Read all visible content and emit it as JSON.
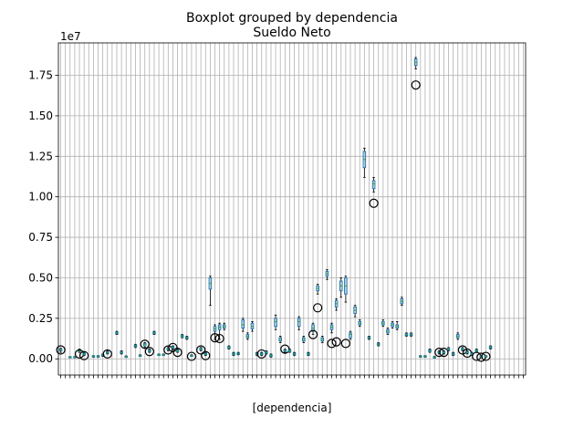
{
  "chart_data": {
    "type": "box",
    "suptitle": "Boxplot grouped by dependencia",
    "title": "Sueldo Neto",
    "xlabel": "[dependencia]",
    "ylabel": "",
    "y_offset_label": "1e7",
    "ylim": [
      -1000000,
      19500000
    ],
    "yticks": [
      0,
      2500000,
      5000000,
      7500000,
      10000000,
      12500000,
      15000000,
      17500000
    ],
    "ytick_labels": [
      "0.00",
      "0.25",
      "0.50",
      "0.75",
      "1.00",
      "1.25",
      "1.50",
      "1.75"
    ],
    "grid": true,
    "box_color": "#1f77b4",
    "median_color": "#2ca02c",
    "flier_color": "#000000",
    "category_count": 100,
    "groups": [
      {
        "i": 0,
        "min": 400000,
        "q1": 500000,
        "med": 550000,
        "q3": 600000,
        "max": 650000,
        "fliers": [
          550000
        ]
      },
      {
        "i": 2,
        "min": 100000,
        "q1": 110000,
        "med": 120000,
        "q3": 130000,
        "max": 140000,
        "fliers": []
      },
      {
        "i": 3,
        "min": 100000,
        "q1": 110000,
        "med": 120000,
        "q3": 130000,
        "max": 140000,
        "fliers": []
      },
      {
        "i": 4,
        "min": 400000,
        "q1": 450000,
        "med": 500000,
        "q3": 550000,
        "max": 600000,
        "fliers": [
          300000
        ]
      },
      {
        "i": 5,
        "min": 200000,
        "q1": 250000,
        "med": 300000,
        "q3": 350000,
        "max": 400000,
        "fliers": [
          200000
        ]
      },
      {
        "i": 7,
        "min": 100000,
        "q1": 120000,
        "med": 150000,
        "q3": 180000,
        "max": 200000,
        "fliers": []
      },
      {
        "i": 8,
        "min": 100000,
        "q1": 120000,
        "med": 150000,
        "q3": 180000,
        "max": 200000,
        "fliers": []
      },
      {
        "i": 9,
        "min": 150000,
        "q1": 200000,
        "med": 230000,
        "q3": 260000,
        "max": 300000,
        "fliers": []
      },
      {
        "i": 10,
        "min": 300000,
        "q1": 350000,
        "med": 400000,
        "q3": 450000,
        "max": 500000,
        "fliers": [
          300000
        ]
      },
      {
        "i": 12,
        "min": 1500000,
        "q1": 1550000,
        "med": 1600000,
        "q3": 1650000,
        "max": 1700000,
        "fliers": []
      },
      {
        "i": 13,
        "min": 300000,
        "q1": 350000,
        "med": 400000,
        "q3": 450000,
        "max": 500000,
        "fliers": []
      },
      {
        "i": 14,
        "min": 100000,
        "q1": 120000,
        "med": 140000,
        "q3": 160000,
        "max": 180000,
        "fliers": []
      },
      {
        "i": 16,
        "min": 700000,
        "q1": 750000,
        "med": 800000,
        "q3": 850000,
        "max": 900000,
        "fliers": []
      },
      {
        "i": 17,
        "min": 150000,
        "q1": 180000,
        "med": 200000,
        "q3": 220000,
        "max": 250000,
        "fliers": []
      },
      {
        "i": 18,
        "min": 700000,
        "q1": 800000,
        "med": 900000,
        "q3": 950000,
        "max": 1000000,
        "fliers": [
          900000
        ]
      },
      {
        "i": 19,
        "min": 400000,
        "q1": 450000,
        "med": 500000,
        "q3": 550000,
        "max": 600000,
        "fliers": [
          450000
        ]
      },
      {
        "i": 20,
        "min": 1500000,
        "q1": 1550000,
        "med": 1600000,
        "q3": 1650000,
        "max": 1700000,
        "fliers": []
      },
      {
        "i": 21,
        "min": 200000,
        "q1": 220000,
        "med": 250000,
        "q3": 280000,
        "max": 300000,
        "fliers": []
      },
      {
        "i": 22,
        "min": 200000,
        "q1": 220000,
        "med": 250000,
        "q3": 280000,
        "max": 300000,
        "fliers": []
      },
      {
        "i": 23,
        "min": 500000,
        "q1": 550000,
        "med": 600000,
        "q3": 650000,
        "max": 700000,
        "fliers": [
          550000
        ]
      },
      {
        "i": 24,
        "min": 600000,
        "q1": 650000,
        "med": 700000,
        "q3": 750000,
        "max": 800000,
        "fliers": [
          700000
        ]
      },
      {
        "i": 25,
        "min": 400000,
        "q1": 450000,
        "med": 500000,
        "q3": 550000,
        "max": 600000,
        "fliers": [
          400000
        ]
      },
      {
        "i": 26,
        "min": 1300000,
        "q1": 1350000,
        "med": 1400000,
        "q3": 1450000,
        "max": 1500000,
        "fliers": []
      },
      {
        "i": 27,
        "min": 1200000,
        "q1": 1250000,
        "med": 1300000,
        "q3": 1350000,
        "max": 1400000,
        "fliers": []
      },
      {
        "i": 28,
        "min": 150000,
        "q1": 180000,
        "med": 200000,
        "q3": 220000,
        "max": 250000,
        "fliers": [
          150000
        ]
      },
      {
        "i": 30,
        "min": 500000,
        "q1": 550000,
        "med": 600000,
        "q3": 650000,
        "max": 700000,
        "fliers": [
          550000
        ]
      },
      {
        "i": 31,
        "min": 200000,
        "q1": 250000,
        "med": 300000,
        "q3": 350000,
        "max": 400000,
        "fliers": [
          200000
        ]
      },
      {
        "i": 32,
        "min": 3300000,
        "q1": 4300000,
        "med": 4650000,
        "q3": 5000000,
        "max": 5100000,
        "fliers": []
      },
      {
        "i": 33,
        "min": 1200000,
        "q1": 1700000,
        "med": 1850000,
        "q3": 2000000,
        "max": 2100000,
        "fliers": [
          1300000
        ]
      },
      {
        "i": 34,
        "min": 1200000,
        "q1": 1800000,
        "med": 1950000,
        "q3": 2100000,
        "max": 2200000,
        "fliers": [
          1250000
        ]
      },
      {
        "i": 35,
        "min": 1800000,
        "q1": 1900000,
        "med": 2000000,
        "q3": 2100000,
        "max": 2200000,
        "fliers": []
      },
      {
        "i": 36,
        "min": 600000,
        "q1": 650000,
        "med": 700000,
        "q3": 750000,
        "max": 800000,
        "fliers": []
      },
      {
        "i": 37,
        "min": 200000,
        "q1": 250000,
        "med": 300000,
        "q3": 350000,
        "max": 400000,
        "fliers": []
      },
      {
        "i": 38,
        "min": 250000,
        "q1": 300000,
        "med": 330000,
        "q3": 360000,
        "max": 400000,
        "fliers": []
      },
      {
        "i": 39,
        "min": 1700000,
        "q1": 1900000,
        "med": 2100000,
        "q3": 2400000,
        "max": 2500000,
        "fliers": []
      },
      {
        "i": 40,
        "min": 1200000,
        "q1": 1300000,
        "med": 1400000,
        "q3": 1500000,
        "max": 1600000,
        "fliers": []
      },
      {
        "i": 41,
        "min": 1700000,
        "q1": 1850000,
        "med": 2000000,
        "q3": 2200000,
        "max": 2300000,
        "fliers": []
      },
      {
        "i": 42,
        "min": 200000,
        "q1": 250000,
        "med": 300000,
        "q3": 350000,
        "max": 400000,
        "fliers": []
      },
      {
        "i": 43,
        "min": 200000,
        "q1": 250000,
        "med": 300000,
        "q3": 350000,
        "max": 400000,
        "fliers": [
          300000
        ]
      },
      {
        "i": 44,
        "min": 300000,
        "q1": 350000,
        "med": 400000,
        "q3": 450000,
        "max": 500000,
        "fliers": []
      },
      {
        "i": 45,
        "min": 100000,
        "q1": 150000,
        "med": 200000,
        "q3": 250000,
        "max": 300000,
        "fliers": []
      },
      {
        "i": 46,
        "min": 1800000,
        "q1": 2000000,
        "med": 2300000,
        "q3": 2500000,
        "max": 2700000,
        "fliers": []
      },
      {
        "i": 47,
        "min": 1000000,
        "q1": 1100000,
        "med": 1200000,
        "q3": 1300000,
        "max": 1400000,
        "fliers": []
      },
      {
        "i": 48,
        "min": 400000,
        "q1": 450000,
        "med": 500000,
        "q3": 550000,
        "max": 600000,
        "fliers": [
          600000
        ]
      },
      {
        "i": 49,
        "min": 400000,
        "q1": 450000,
        "med": 500000,
        "q3": 550000,
        "max": 600000,
        "fliers": []
      },
      {
        "i": 50,
        "min": 200000,
        "q1": 250000,
        "med": 300000,
        "q3": 350000,
        "max": 400000,
        "fliers": []
      },
      {
        "i": 51,
        "min": 1800000,
        "q1": 2000000,
        "med": 2300000,
        "q3": 2500000,
        "max": 2600000,
        "fliers": []
      },
      {
        "i": 52,
        "min": 1000000,
        "q1": 1100000,
        "med": 1200000,
        "q3": 1300000,
        "max": 1400000,
        "fliers": []
      },
      {
        "i": 53,
        "min": 200000,
        "q1": 250000,
        "med": 300000,
        "q3": 350000,
        "max": 400000,
        "fliers": []
      },
      {
        "i": 54,
        "min": 1500000,
        "q1": 1700000,
        "med": 1900000,
        "q3": 2100000,
        "max": 2200000,
        "fliers": [
          1500000
        ]
      },
      {
        "i": 55,
        "min": 4000000,
        "q1": 4200000,
        "med": 4350000,
        "q3": 4500000,
        "max": 4600000,
        "fliers": [
          3150000
        ]
      },
      {
        "i": 56,
        "min": 1000000,
        "q1": 1100000,
        "med": 1200000,
        "q3": 1300000,
        "max": 1400000,
        "fliers": []
      },
      {
        "i": 57,
        "min": 4900000,
        "q1": 5100000,
        "med": 5250000,
        "q3": 5400000,
        "max": 5500000,
        "fliers": []
      },
      {
        "i": 58,
        "min": 1600000,
        "q1": 1800000,
        "med": 1950000,
        "q3": 2100000,
        "max": 2200000,
        "fliers": [
          950000
        ]
      },
      {
        "i": 59,
        "min": 3000000,
        "q1": 3200000,
        "med": 3400000,
        "q3": 3600000,
        "max": 3700000,
        "fliers": [
          1050000
        ]
      },
      {
        "i": 60,
        "min": 3800000,
        "q1": 4200000,
        "med": 4500000,
        "q3": 4800000,
        "max": 5000000,
        "fliers": []
      },
      {
        "i": 61,
        "min": 3500000,
        "q1": 4000000,
        "med": 4500000,
        "q3": 5000000,
        "max": 5100000,
        "fliers": [
          950000
        ]
      },
      {
        "i": 62,
        "min": 1200000,
        "q1": 1300000,
        "med": 1500000,
        "q3": 1600000,
        "max": 1700000,
        "fliers": []
      },
      {
        "i": 63,
        "min": 2600000,
        "q1": 2800000,
        "med": 3000000,
        "q3": 3200000,
        "max": 3300000,
        "fliers": []
      },
      {
        "i": 64,
        "min": 2000000,
        "q1": 2100000,
        "med": 2200000,
        "q3": 2300000,
        "max": 2400000,
        "fliers": []
      },
      {
        "i": 65,
        "min": 11200000,
        "q1": 11800000,
        "med": 12300000,
        "q3": 12800000,
        "max": 13000000,
        "fliers": []
      },
      {
        "i": 66,
        "min": 1200000,
        "q1": 1250000,
        "med": 1300000,
        "q3": 1350000,
        "max": 1400000,
        "fliers": []
      },
      {
        "i": 67,
        "min": 10300000,
        "q1": 10500000,
        "med": 10800000,
        "q3": 11000000,
        "max": 11200000,
        "fliers": [
          9600000
        ]
      },
      {
        "i": 68,
        "min": 800000,
        "q1": 850000,
        "med": 900000,
        "q3": 950000,
        "max": 1000000,
        "fliers": []
      },
      {
        "i": 69,
        "min": 2000000,
        "q1": 2100000,
        "med": 2200000,
        "q3": 2300000,
        "max": 2400000,
        "fliers": []
      },
      {
        "i": 70,
        "min": 1500000,
        "q1": 1600000,
        "med": 1700000,
        "q3": 1800000,
        "max": 1900000,
        "fliers": []
      },
      {
        "i": 71,
        "min": 1900000,
        "q1": 2000000,
        "med": 2100000,
        "q3": 2200000,
        "max": 2300000,
        "fliers": []
      },
      {
        "i": 72,
        "min": 1800000,
        "q1": 1900000,
        "med": 2000000,
        "q3": 2100000,
        "max": 2300000,
        "fliers": []
      },
      {
        "i": 73,
        "min": 3300000,
        "q1": 3400000,
        "med": 3550000,
        "q3": 3700000,
        "max": 3800000,
        "fliers": []
      },
      {
        "i": 74,
        "min": 1400000,
        "q1": 1450000,
        "med": 1500000,
        "q3": 1550000,
        "max": 1600000,
        "fliers": []
      },
      {
        "i": 75,
        "min": 1400000,
        "q1": 1450000,
        "med": 1500000,
        "q3": 1550000,
        "max": 1600000,
        "fliers": []
      },
      {
        "i": 76,
        "min": 17900000,
        "q1": 18100000,
        "med": 18300000,
        "q3": 18500000,
        "max": 18600000,
        "fliers": [
          16900000
        ]
      },
      {
        "i": 77,
        "min": 100000,
        "q1": 120000,
        "med": 150000,
        "q3": 180000,
        "max": 200000,
        "fliers": []
      },
      {
        "i": 78,
        "min": 100000,
        "q1": 120000,
        "med": 150000,
        "q3": 180000,
        "max": 200000,
        "fliers": []
      },
      {
        "i": 79,
        "min": 400000,
        "q1": 450000,
        "med": 500000,
        "q3": 550000,
        "max": 600000,
        "fliers": []
      },
      {
        "i": 80,
        "min": 50000,
        "q1": 80000,
        "med": 100000,
        "q3": 120000,
        "max": 150000,
        "fliers": []
      },
      {
        "i": 81,
        "min": 300000,
        "q1": 350000,
        "med": 400000,
        "q3": 450000,
        "max": 500000,
        "fliers": [
          400000
        ]
      },
      {
        "i": 82,
        "min": 300000,
        "q1": 350000,
        "med": 400000,
        "q3": 450000,
        "max": 500000,
        "fliers": [
          400000
        ]
      },
      {
        "i": 83,
        "min": 500000,
        "q1": 550000,
        "med": 600000,
        "q3": 650000,
        "max": 700000,
        "fliers": []
      },
      {
        "i": 84,
        "min": 200000,
        "q1": 250000,
        "med": 300000,
        "q3": 350000,
        "max": 400000,
        "fliers": []
      },
      {
        "i": 85,
        "min": 1200000,
        "q1": 1300000,
        "med": 1400000,
        "q3": 1500000,
        "max": 1600000,
        "fliers": []
      },
      {
        "i": 86,
        "min": 500000,
        "q1": 550000,
        "med": 600000,
        "q3": 650000,
        "max": 700000,
        "fliers": [
          550000
        ]
      },
      {
        "i": 87,
        "min": 300000,
        "q1": 350000,
        "med": 400000,
        "q3": 450000,
        "max": 500000,
        "fliers": [
          350000
        ]
      },
      {
        "i": 88,
        "min": 200000,
        "q1": 250000,
        "med": 300000,
        "q3": 350000,
        "max": 400000,
        "fliers": []
      },
      {
        "i": 89,
        "min": 400000,
        "q1": 450000,
        "med": 500000,
        "q3": 550000,
        "max": 600000,
        "fliers": [
          150000
        ]
      },
      {
        "i": 90,
        "min": 100000,
        "q1": 120000,
        "med": 150000,
        "q3": 180000,
        "max": 200000,
        "fliers": [
          100000
        ]
      },
      {
        "i": 91,
        "min": 100000,
        "q1": 120000,
        "med": 150000,
        "q3": 180000,
        "max": 200000,
        "fliers": [
          150000
        ]
      },
      {
        "i": 92,
        "min": 600000,
        "q1": 650000,
        "med": 700000,
        "q3": 750000,
        "max": 800000,
        "fliers": []
      }
    ]
  }
}
